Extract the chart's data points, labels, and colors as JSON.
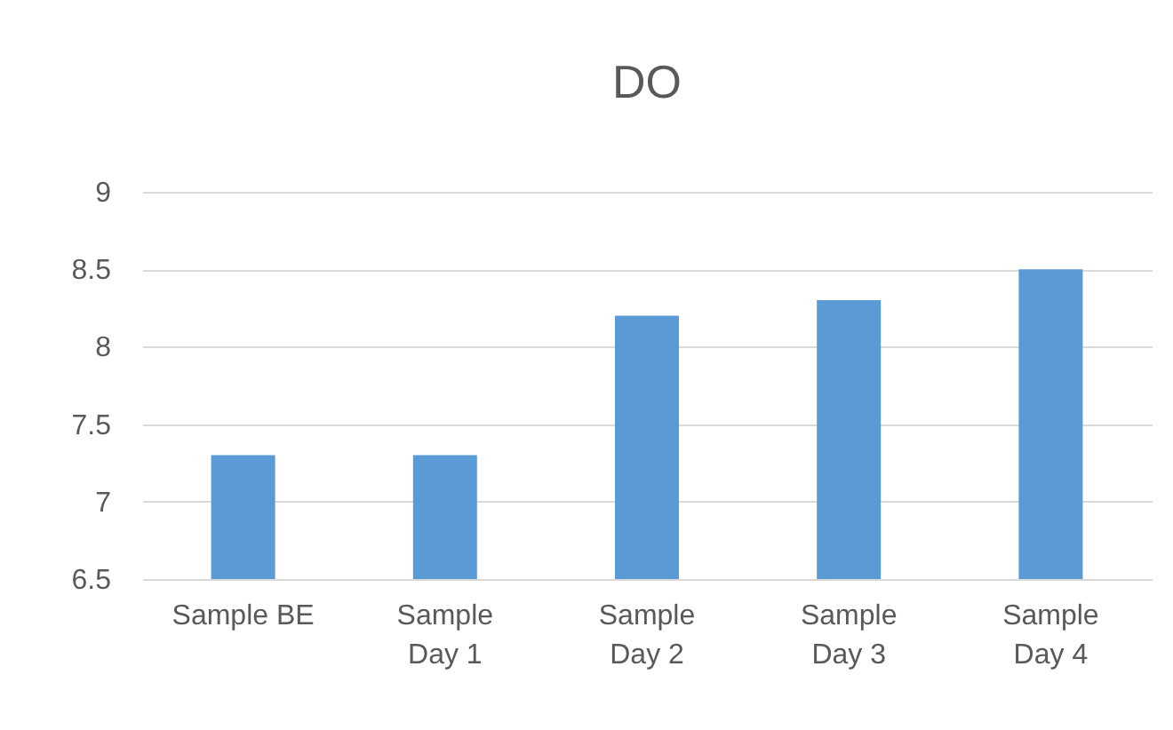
{
  "chart_data": {
    "type": "bar",
    "title": "DO",
    "categories": [
      "Sample BE",
      "Sample\nDay 1",
      "Sample\nDay 2",
      "Sample\nDay 3",
      "Sample\nDay 4"
    ],
    "values": [
      7.3,
      7.3,
      8.2,
      8.3,
      8.5
    ],
    "color": "#5b9bd5",
    "ylim": [
      6.5,
      9
    ],
    "yticks": [
      6.5,
      7,
      7.5,
      8,
      8.5,
      9
    ],
    "grid": "y"
  }
}
